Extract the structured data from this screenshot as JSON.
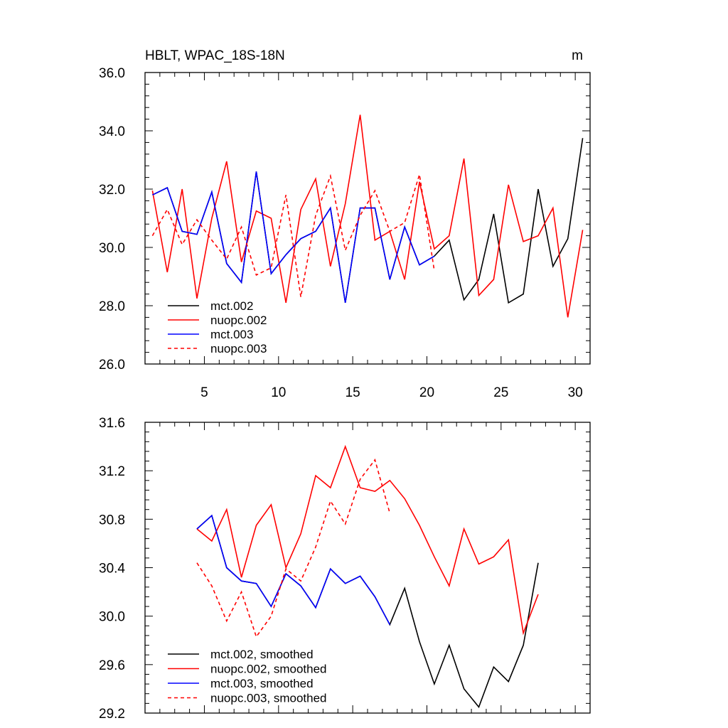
{
  "chart_data": [
    {
      "type": "line",
      "title": "HBLT, WPAC_18S-18N",
      "units": "m",
      "xlim": [
        1,
        31
      ],
      "ylim": [
        26.0,
        36.0
      ],
      "xticks": [
        5,
        10,
        15,
        20,
        25,
        30
      ],
      "xtick_labels": [
        "5",
        "10",
        "15",
        "20",
        "25",
        "30"
      ],
      "yticks": [
        26.0,
        28.0,
        30.0,
        32.0,
        34.0,
        36.0
      ],
      "ytick_labels": [
        "26.0",
        "28.0",
        "30.0",
        "32.0",
        "34.0",
        "36.0"
      ],
      "legend_position": "bottom-left",
      "series": [
        {
          "name": "mct.002",
          "color": "#000000",
          "dash": "solid",
          "x": [
            1.5,
            2.5,
            3.5,
            4.5,
            5.5,
            6.5,
            7.5,
            8.5,
            9.5,
            10.5,
            11.5,
            12.5,
            13.5,
            14.5,
            15.5,
            16.5,
            17.5,
            18.5,
            19.5,
            20.5,
            21.5,
            22.5,
            23.5,
            24.5,
            25.5,
            26.5,
            27.5,
            28.5,
            29.5,
            30.5
          ],
          "values": [
            31.8,
            32.05,
            30.55,
            30.45,
            31.9,
            29.45,
            28.8,
            32.6,
            29.1,
            29.75,
            30.3,
            30.55,
            31.35,
            28.1,
            31.35,
            31.35,
            28.9,
            30.7,
            29.4,
            29.7,
            30.25,
            28.2,
            28.9,
            31.15,
            28.1,
            28.4,
            32.0,
            29.35,
            30.3,
            33.75
          ]
        },
        {
          "name": "nuopc.002",
          "color": "#ff0000",
          "dash": "solid",
          "x": [
            1.5,
            2.5,
            3.5,
            4.5,
            5.5,
            6.5,
            7.5,
            8.5,
            9.5,
            10.5,
            11.5,
            12.5,
            13.5,
            14.5,
            15.5,
            16.5,
            17.5,
            18.5,
            19.5,
            20.5,
            21.5,
            22.5,
            23.5,
            24.5,
            25.5,
            26.5,
            27.5,
            28.5,
            29.5,
            30.5
          ],
          "values": [
            31.95,
            29.15,
            32.0,
            28.25,
            31.0,
            32.95,
            29.5,
            31.25,
            31.0,
            28.1,
            31.3,
            32.35,
            29.35,
            31.5,
            34.55,
            30.25,
            30.55,
            28.9,
            32.25,
            29.95,
            30.4,
            33.05,
            28.35,
            28.9,
            32.15,
            30.2,
            30.4,
            31.35,
            27.6,
            30.6
          ]
        },
        {
          "name": "mct.003",
          "color": "#0000ff",
          "dash": "solid",
          "x": [
            1.5,
            2.5,
            3.5,
            4.5,
            5.5,
            6.5,
            7.5,
            8.5,
            9.5,
            10.5,
            11.5,
            12.5,
            13.5,
            14.5,
            15.5,
            16.5,
            17.5,
            18.5,
            19.5,
            20.5
          ],
          "values": [
            31.8,
            32.05,
            30.55,
            30.45,
            31.9,
            29.45,
            28.8,
            32.6,
            29.1,
            29.75,
            30.3,
            30.55,
            31.35,
            28.1,
            31.35,
            31.35,
            28.9,
            30.7,
            29.4,
            29.7
          ]
        },
        {
          "name": "nuopc.003",
          "color": "#ff0000",
          "dash": "dashed",
          "x": [
            1.5,
            2.5,
            3.5,
            4.5,
            5.5,
            6.5,
            7.5,
            8.5,
            9.5,
            10.5,
            11.5,
            12.5,
            13.5,
            14.5,
            15.5,
            16.5,
            17.5,
            18.5,
            19.5,
            20.5
          ],
          "values": [
            30.4,
            31.3,
            30.1,
            30.95,
            30.25,
            29.6,
            30.7,
            29.05,
            29.3,
            31.8,
            28.3,
            31.1,
            32.45,
            29.9,
            31.1,
            31.95,
            30.55,
            30.85,
            32.5,
            29.2
          ]
        }
      ]
    },
    {
      "type": "line",
      "title": "",
      "units": "",
      "xlim": [
        1,
        31
      ],
      "ylim": [
        29.2,
        31.6
      ],
      "xticks": [
        5,
        10,
        15,
        20,
        25,
        30
      ],
      "xtick_labels": [],
      "yticks": [
        29.2,
        29.6,
        30.0,
        30.4,
        30.8,
        31.2,
        31.6
      ],
      "ytick_labels": [
        "29.2",
        "29.6",
        "30.0",
        "30.4",
        "30.8",
        "31.2",
        "31.6"
      ],
      "legend_position": "bottom-left",
      "series": [
        {
          "name": "mct.002, smoothed",
          "color": "#000000",
          "dash": "solid",
          "x": [
            4.5,
            5.5,
            6.5,
            7.5,
            8.5,
            9.5,
            10.5,
            11.5,
            12.5,
            13.5,
            14.5,
            15.5,
            16.5,
            17.5,
            18.5,
            19.5,
            20.5,
            21.5,
            22.5,
            23.5,
            24.5,
            25.5,
            26.5,
            27.5
          ],
          "values": [
            30.72,
            30.83,
            30.4,
            30.29,
            30.27,
            30.08,
            30.35,
            30.25,
            30.07,
            30.39,
            30.27,
            30.33,
            30.16,
            29.93,
            30.23,
            29.79,
            29.44,
            29.76,
            29.4,
            29.25,
            29.58,
            29.46,
            29.76,
            30.44
          ]
        },
        {
          "name": "nuopc.002, smoothed",
          "color": "#ff0000",
          "dash": "solid",
          "x": [
            4.5,
            5.5,
            6.5,
            7.5,
            8.5,
            9.5,
            10.5,
            11.5,
            12.5,
            13.5,
            14.5,
            15.5,
            16.5,
            17.5,
            18.5,
            19.5,
            20.5,
            21.5,
            22.5,
            23.5,
            24.5,
            25.5,
            26.5,
            27.5
          ],
          "values": [
            30.72,
            30.62,
            30.88,
            30.32,
            30.75,
            30.92,
            30.4,
            30.68,
            31.16,
            31.06,
            31.4,
            31.06,
            31.03,
            31.12,
            30.97,
            30.75,
            30.49,
            30.25,
            30.72,
            30.43,
            30.49,
            30.63,
            29.86,
            30.18
          ]
        },
        {
          "name": "mct.003, smoothed",
          "color": "#0000ff",
          "dash": "solid",
          "x": [
            4.5,
            5.5,
            6.5,
            7.5,
            8.5,
            9.5,
            10.5,
            11.5,
            12.5,
            13.5,
            14.5,
            15.5,
            16.5,
            17.5
          ],
          "values": [
            30.72,
            30.83,
            30.4,
            30.29,
            30.27,
            30.08,
            30.35,
            30.25,
            30.07,
            30.39,
            30.27,
            30.33,
            30.16,
            29.93
          ]
        },
        {
          "name": "nuopc.003, smoothed",
          "color": "#ff0000",
          "dash": "dashed",
          "x": [
            4.5,
            5.5,
            6.5,
            7.5,
            8.5,
            9.5,
            10.5,
            11.5,
            12.5,
            13.5,
            14.5,
            15.5,
            16.5,
            17.5
          ],
          "values": [
            30.44,
            30.25,
            29.96,
            30.2,
            29.83,
            30.0,
            30.39,
            30.29,
            30.57,
            30.95,
            30.76,
            31.13,
            31.29,
            30.85
          ]
        }
      ]
    }
  ]
}
